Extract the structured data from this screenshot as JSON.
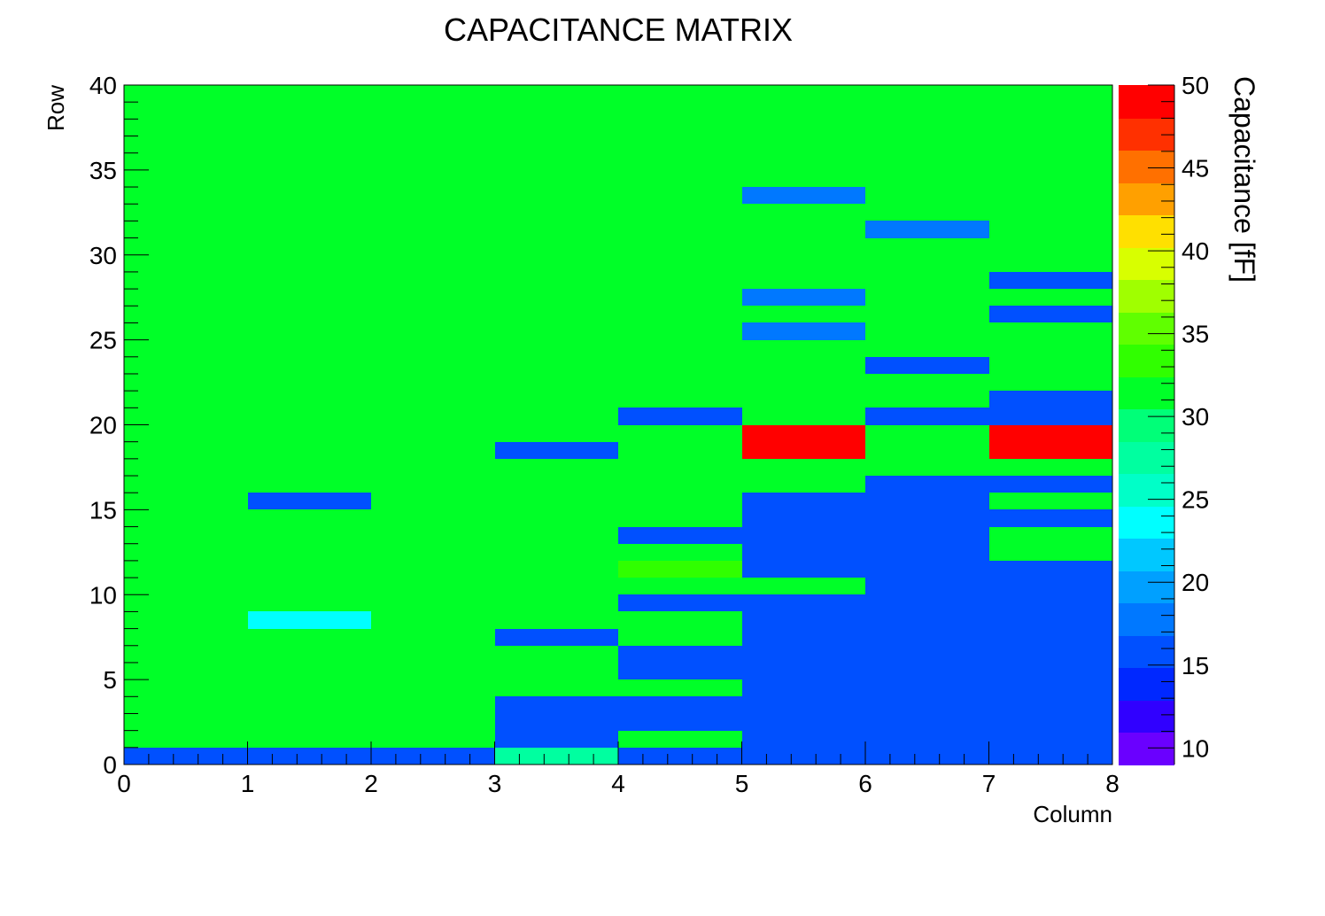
{
  "chart_data": {
    "type": "heatmap",
    "title": "CAPACITANCE MATRIX",
    "xlabel": "Column",
    "ylabel": "Row",
    "zlabel": "Capacitance [fF]",
    "xlim": [
      0,
      8
    ],
    "ylim": [
      0,
      40
    ],
    "zlim": [
      9,
      50
    ],
    "x_ticks": [
      "0",
      "1",
      "2",
      "3",
      "4",
      "5",
      "6",
      "7",
      "8"
    ],
    "y_ticks": [
      "0",
      "5",
      "10",
      "15",
      "20",
      "25",
      "30",
      "35",
      "40"
    ],
    "z_ticks": [
      "10",
      "15",
      "20",
      "25",
      "30",
      "35",
      "40",
      "45",
      "50"
    ],
    "palette": [
      "#6a00ff",
      "#3000ff",
      "#0028ff",
      "#0050ff",
      "#0078ff",
      "#00a0ff",
      "#00c8ff",
      "#00ffff",
      "#00ffc8",
      "#00ffa0",
      "#00ff78",
      "#00ff28",
      "#30ff00",
      "#60ff00",
      "#a0ff00",
      "#d8ff00",
      "#ffe000",
      "#ffa000",
      "#ff7000",
      "#ff3000",
      "#ff0000"
    ],
    "grid": false,
    "background_value": 32,
    "cells": [
      {
        "col": 0,
        "row": 0,
        "z": 16
      },
      {
        "col": 1,
        "row": 0,
        "z": 16
      },
      {
        "col": 2,
        "row": 0,
        "z": 15
      },
      {
        "col": 3,
        "row": 0,
        "z": 27
      },
      {
        "col": 4,
        "row": 0,
        "z": 15
      },
      {
        "col": 5,
        "row": 0,
        "z": 15
      },
      {
        "col": 6,
        "row": 0,
        "z": 15
      },
      {
        "col": 7,
        "row": 0,
        "z": 15
      },
      {
        "col": 0,
        "row": 1,
        "z": 31
      },
      {
        "col": 1,
        "row": 1,
        "z": 31
      },
      {
        "col": 2,
        "row": 1,
        "z": 31
      },
      {
        "col": 3,
        "row": 1,
        "z": 16
      },
      {
        "col": 4,
        "row": 1,
        "z": 31
      },
      {
        "col": 5,
        "row": 1,
        "z": 15
      },
      {
        "col": 6,
        "row": 1,
        "z": 15
      },
      {
        "col": 7,
        "row": 1,
        "z": 15
      },
      {
        "col": 3,
        "row": 2,
        "z": 16
      },
      {
        "col": 4,
        "row": 2,
        "z": 16
      },
      {
        "col": 5,
        "row": 2,
        "z": 15
      },
      {
        "col": 6,
        "row": 2,
        "z": 15
      },
      {
        "col": 7,
        "row": 2,
        "z": 15
      },
      {
        "col": 3,
        "row": 3,
        "z": 16
      },
      {
        "col": 4,
        "row": 3,
        "z": 16
      },
      {
        "col": 5,
        "row": 3,
        "z": 15
      },
      {
        "col": 6,
        "row": 3,
        "z": 15
      },
      {
        "col": 7,
        "row": 3,
        "z": 15
      },
      {
        "col": 3,
        "row": 4,
        "z": 31
      },
      {
        "col": 4,
        "row": 4,
        "z": 31
      },
      {
        "col": 5,
        "row": 4,
        "z": 15
      },
      {
        "col": 6,
        "row": 4,
        "z": 15
      },
      {
        "col": 7,
        "row": 4,
        "z": 15
      },
      {
        "col": 4,
        "row": 5,
        "z": 16
      },
      {
        "col": 5,
        "row": 5,
        "z": 15
      },
      {
        "col": 6,
        "row": 5,
        "z": 15
      },
      {
        "col": 7,
        "row": 5,
        "z": 15
      },
      {
        "col": 3,
        "row": 6,
        "z": 31
      },
      {
        "col": 4,
        "row": 6,
        "z": 16
      },
      {
        "col": 5,
        "row": 6,
        "z": 15
      },
      {
        "col": 6,
        "row": 6,
        "z": 15
      },
      {
        "col": 7,
        "row": 6,
        "z": 15
      },
      {
        "col": 1,
        "row": 7,
        "z": 31
      },
      {
        "col": 3,
        "row": 7,
        "z": 15
      },
      {
        "col": 4,
        "row": 7,
        "z": 31
      },
      {
        "col": 5,
        "row": 7,
        "z": 15
      },
      {
        "col": 6,
        "row": 7,
        "z": 15
      },
      {
        "col": 7,
        "row": 7,
        "z": 15
      },
      {
        "col": 1,
        "row": 8,
        "z": 23
      },
      {
        "col": 3,
        "row": 8,
        "z": 31
      },
      {
        "col": 4,
        "row": 8,
        "z": 31
      },
      {
        "col": 5,
        "row": 8,
        "z": 16
      },
      {
        "col": 6,
        "row": 8,
        "z": 15
      },
      {
        "col": 7,
        "row": 8,
        "z": 15
      },
      {
        "col": 1,
        "row": 9,
        "z": 31
      },
      {
        "col": 4,
        "row": 9,
        "z": 16
      },
      {
        "col": 5,
        "row": 9,
        "z": 16
      },
      {
        "col": 6,
        "row": 9,
        "z": 15
      },
      {
        "col": 7,
        "row": 9,
        "z": 15
      },
      {
        "col": 4,
        "row": 10,
        "z": 31
      },
      {
        "col": 5,
        "row": 10,
        "z": 31
      },
      {
        "col": 6,
        "row": 10,
        "z": 15
      },
      {
        "col": 7,
        "row": 10,
        "z": 15
      },
      {
        "col": 4,
        "row": 11,
        "z": 33
      },
      {
        "col": 5,
        "row": 11,
        "z": 15
      },
      {
        "col": 6,
        "row": 11,
        "z": 15
      },
      {
        "col": 7,
        "row": 11,
        "z": 15
      },
      {
        "col": 4,
        "row": 12,
        "z": 31
      },
      {
        "col": 5,
        "row": 12,
        "z": 15
      },
      {
        "col": 6,
        "row": 12,
        "z": 16
      },
      {
        "col": 7,
        "row": 12,
        "z": 31
      },
      {
        "col": 4,
        "row": 13,
        "z": 16
      },
      {
        "col": 5,
        "row": 13,
        "z": 15
      },
      {
        "col": 6,
        "row": 13,
        "z": 16
      },
      {
        "col": 7,
        "row": 13,
        "z": 31
      },
      {
        "col": 4,
        "row": 14,
        "z": 31
      },
      {
        "col": 5,
        "row": 14,
        "z": 15
      },
      {
        "col": 6,
        "row": 14,
        "z": 15
      },
      {
        "col": 7,
        "row": 14,
        "z": 15
      },
      {
        "col": 1,
        "row": 14,
        "z": 31
      },
      {
        "col": 1,
        "row": 15,
        "z": 15
      },
      {
        "col": 5,
        "row": 15,
        "z": 16
      },
      {
        "col": 6,
        "row": 15,
        "z": 16
      },
      {
        "col": 7,
        "row": 15,
        "z": 31
      },
      {
        "col": 1,
        "row": 16,
        "z": 31
      },
      {
        "col": 5,
        "row": 16,
        "z": 31
      },
      {
        "col": 6,
        "row": 16,
        "z": 16
      },
      {
        "col": 7,
        "row": 16,
        "z": 16
      },
      {
        "col": 3,
        "row": 17,
        "z": 31
      },
      {
        "col": 5,
        "row": 17,
        "z": 31
      },
      {
        "col": 6,
        "row": 17,
        "z": 31
      },
      {
        "col": 7,
        "row": 17,
        "z": 31
      },
      {
        "col": 3,
        "row": 18,
        "z": 16
      },
      {
        "col": 5,
        "row": 18,
        "z": 50
      },
      {
        "col": 6,
        "row": 18,
        "z": 31
      },
      {
        "col": 7,
        "row": 18,
        "z": 50
      },
      {
        "col": 4,
        "row": 19,
        "z": 31
      },
      {
        "col": 5,
        "row": 19,
        "z": 50
      },
      {
        "col": 6,
        "row": 19,
        "z": 31
      },
      {
        "col": 7,
        "row": 19,
        "z": 50
      },
      {
        "col": 4,
        "row": 20,
        "z": 16
      },
      {
        "col": 6,
        "row": 20,
        "z": 16
      },
      {
        "col": 7,
        "row": 20,
        "z": 16
      },
      {
        "col": 7,
        "row": 21,
        "z": 16
      },
      {
        "col": 6,
        "row": 23,
        "z": 16
      },
      {
        "col": 5,
        "row": 25,
        "z": 18
      },
      {
        "col": 5,
        "row": 26,
        "z": 31
      },
      {
        "col": 7,
        "row": 26,
        "z": 16
      },
      {
        "col": 5,
        "row": 27,
        "z": 18
      },
      {
        "col": 7,
        "row": 27,
        "z": 31
      },
      {
        "col": 7,
        "row": 28,
        "z": 16
      },
      {
        "col": 6,
        "row": 31,
        "z": 18
      },
      {
        "col": 5,
        "row": 33,
        "z": 18
      },
      {
        "col": 0,
        "row": 39,
        "z": 31
      },
      {
        "col": 1,
        "row": 39,
        "z": 31
      },
      {
        "col": 2,
        "row": 39,
        "z": 31
      },
      {
        "col": 3,
        "row": 39,
        "z": 31
      },
      {
        "col": 4,
        "row": 39,
        "z": 31
      },
      {
        "col": 5,
        "row": 39,
        "z": 31
      },
      {
        "col": 6,
        "row": 39,
        "z": 31
      },
      {
        "col": 7,
        "row": 39,
        "z": 31
      }
    ]
  }
}
